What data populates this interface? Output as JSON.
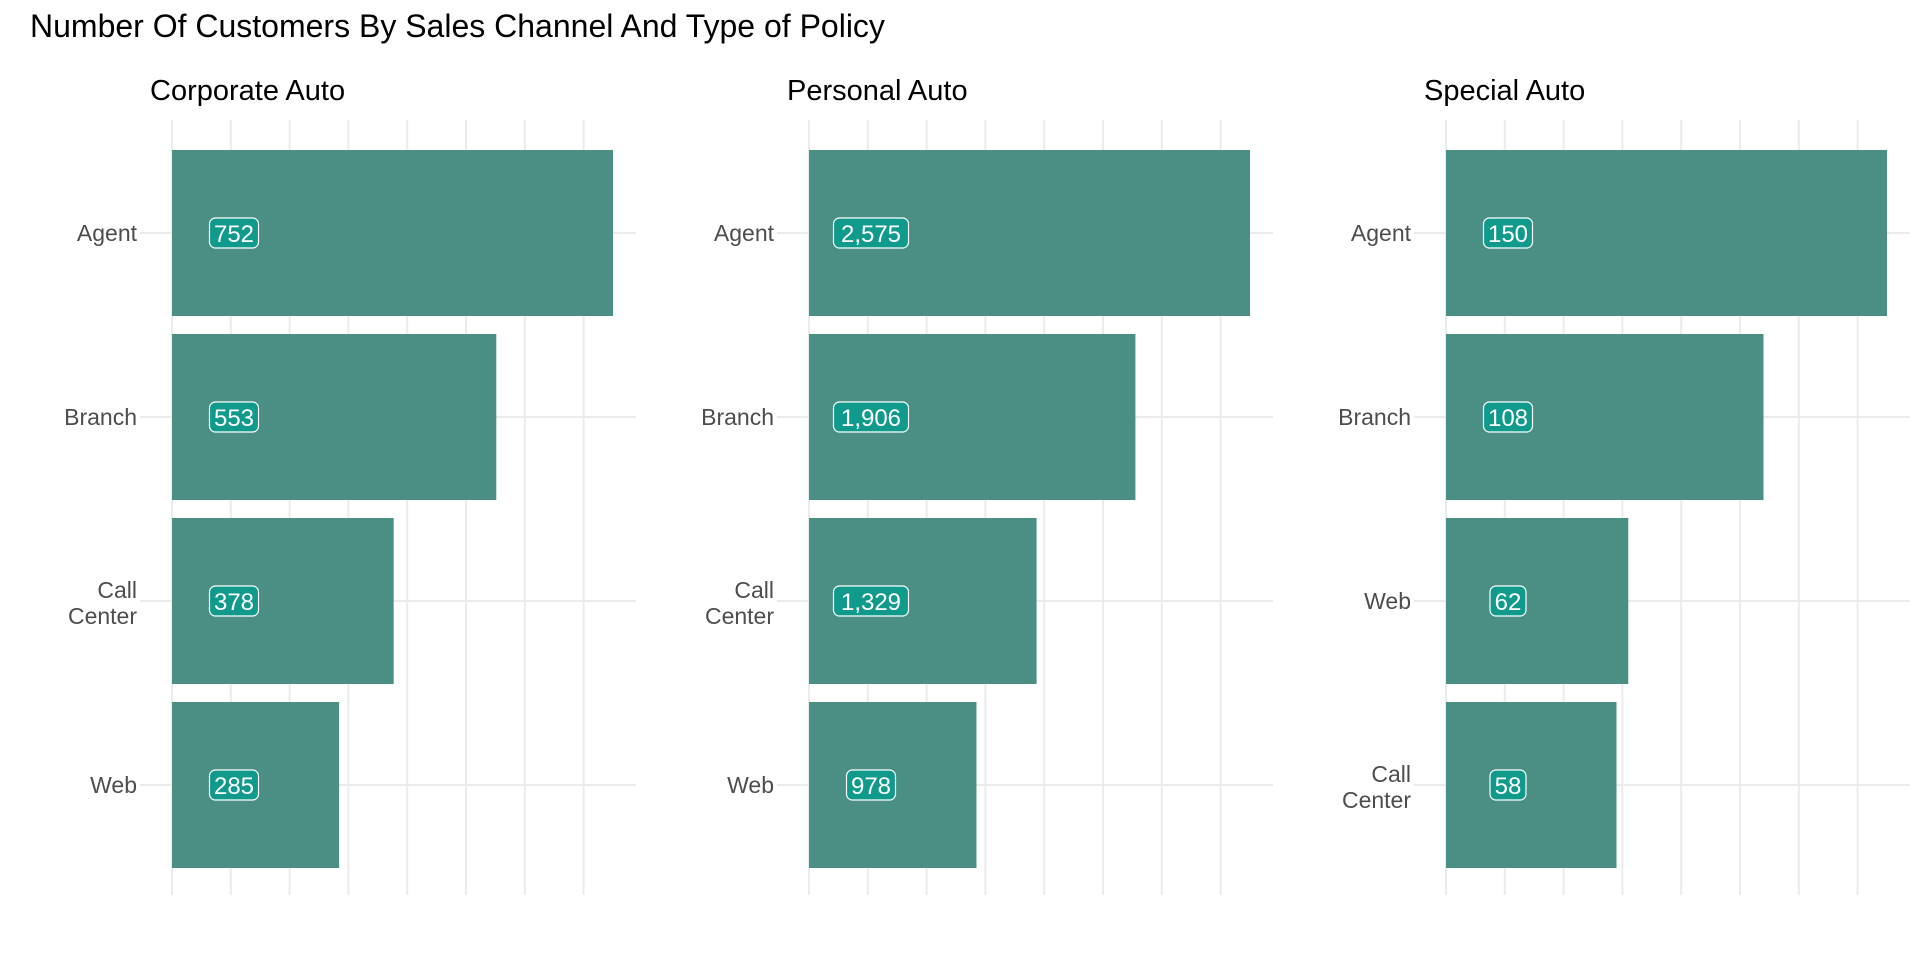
{
  "chart_data": {
    "type": "bar",
    "orientation": "horizontal",
    "title": "Number Of Customers By Sales Channel And Type of Policy",
    "bar_color": "#4b8f84",
    "label_fill": "#0f9a8c",
    "grid": true,
    "facets": [
      {
        "title": "Corporate Auto",
        "categories": [
          "Agent",
          "Branch",
          "Call Center",
          "Web"
        ],
        "values": [
          752,
          553,
          378,
          285
        ],
        "value_labels": [
          "752",
          "553",
          "378",
          "285"
        ]
      },
      {
        "title": "Personal Auto",
        "categories": [
          "Agent",
          "Branch",
          "Call Center",
          "Web"
        ],
        "values": [
          2575,
          1906,
          1329,
          978
        ],
        "value_labels": [
          "2,575",
          "1,906",
          "1,329",
          "978"
        ]
      },
      {
        "title": "Special Auto",
        "categories": [
          "Agent",
          "Branch",
          "Web",
          "Call Center"
        ],
        "values": [
          150,
          108,
          62,
          58
        ],
        "value_labels": [
          "150",
          "108",
          "62",
          "58"
        ]
      }
    ]
  }
}
